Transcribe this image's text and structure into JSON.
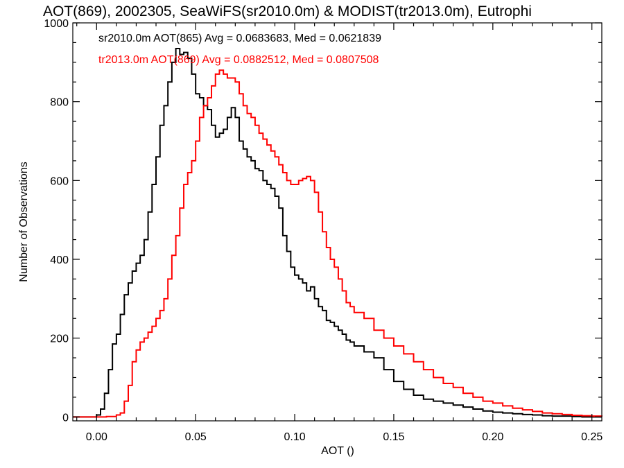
{
  "chart_data": {
    "type": "line",
    "title": "AOT(869), 2002305, SeaWiFS(sr2010.0m) & MODIST(tr2013.0m), Eutrophi",
    "xlabel": "AOT ()",
    "ylabel": "Number of Observations",
    "xlim": [
      -0.012,
      0.255
    ],
    "ylim": [
      -10,
      1000
    ],
    "xticks": [
      "0.00",
      "0.05",
      "0.10",
      "0.15",
      "0.20",
      "0.25"
    ],
    "xtick_values": [
      0.0,
      0.05,
      0.1,
      0.15,
      0.2,
      0.25
    ],
    "yticks": [
      "0",
      "200",
      "400",
      "600",
      "800",
      "1000"
    ],
    "ytick_values": [
      0,
      200,
      400,
      600,
      800,
      1000
    ],
    "step": "histogram",
    "legend_placement": "top-left",
    "series": [
      {
        "name": "sr2010.0m AOT(865)",
        "legend_text": "sr2010.0m AOT(865) Avg = 0.0683683, Med = 0.0621839",
        "color": "#000000",
        "x": [
          -0.012,
          -0.005,
          0.0,
          0.002,
          0.004,
          0.006,
          0.008,
          0.01,
          0.012,
          0.014,
          0.016,
          0.018,
          0.02,
          0.022,
          0.024,
          0.026,
          0.028,
          0.03,
          0.032,
          0.034,
          0.036,
          0.038,
          0.04,
          0.042,
          0.044,
          0.046,
          0.048,
          0.05,
          0.052,
          0.054,
          0.056,
          0.058,
          0.06,
          0.062,
          0.064,
          0.066,
          0.068,
          0.07,
          0.072,
          0.074,
          0.076,
          0.078,
          0.08,
          0.082,
          0.084,
          0.086,
          0.088,
          0.09,
          0.092,
          0.094,
          0.096,
          0.098,
          0.1,
          0.102,
          0.104,
          0.106,
          0.108,
          0.11,
          0.112,
          0.114,
          0.116,
          0.118,
          0.12,
          0.122,
          0.124,
          0.126,
          0.128,
          0.13,
          0.135,
          0.14,
          0.145,
          0.15,
          0.155,
          0.16,
          0.165,
          0.17,
          0.175,
          0.18,
          0.185,
          0.19,
          0.195,
          0.2,
          0.205,
          0.21,
          0.215,
          0.22,
          0.225,
          0.23,
          0.235,
          0.24,
          0.245,
          0.25,
          0.255
        ],
        "y": [
          0,
          0,
          5,
          20,
          60,
          120,
          185,
          210,
          260,
          310,
          340,
          370,
          390,
          410,
          450,
          520,
          590,
          660,
          740,
          790,
          850,
          900,
          935,
          920,
          925,
          910,
          870,
          820,
          810,
          790,
          780,
          740,
          710,
          720,
          730,
          760,
          785,
          760,
          700,
          680,
          660,
          650,
          630,
          625,
          600,
          590,
          580,
          560,
          530,
          460,
          420,
          380,
          360,
          350,
          340,
          320,
          330,
          300,
          280,
          270,
          245,
          240,
          230,
          220,
          210,
          195,
          190,
          180,
          165,
          150,
          120,
          90,
          70,
          55,
          45,
          40,
          35,
          30,
          25,
          20,
          15,
          12,
          10,
          8,
          6,
          5,
          3,
          2,
          2,
          1,
          0,
          0,
          0
        ]
      },
      {
        "name": "tr2013.0m AOT(869)",
        "legend_text": "tr2013.0m AOT(869) Avg = 0.0882512, Med = 0.0807508",
        "color": "#ff0000",
        "x": [
          -0.012,
          -0.005,
          0.0,
          0.005,
          0.01,
          0.012,
          0.014,
          0.016,
          0.018,
          0.02,
          0.022,
          0.024,
          0.026,
          0.028,
          0.03,
          0.032,
          0.034,
          0.036,
          0.038,
          0.04,
          0.042,
          0.044,
          0.046,
          0.048,
          0.05,
          0.052,
          0.054,
          0.056,
          0.058,
          0.06,
          0.062,
          0.064,
          0.066,
          0.068,
          0.07,
          0.072,
          0.074,
          0.076,
          0.078,
          0.08,
          0.082,
          0.084,
          0.086,
          0.088,
          0.09,
          0.092,
          0.094,
          0.096,
          0.098,
          0.1,
          0.102,
          0.104,
          0.106,
          0.108,
          0.11,
          0.112,
          0.114,
          0.116,
          0.118,
          0.12,
          0.122,
          0.124,
          0.126,
          0.128,
          0.13,
          0.135,
          0.14,
          0.145,
          0.15,
          0.155,
          0.16,
          0.165,
          0.17,
          0.175,
          0.18,
          0.185,
          0.19,
          0.195,
          0.2,
          0.205,
          0.21,
          0.215,
          0.22,
          0.225,
          0.23,
          0.235,
          0.24,
          0.245,
          0.25,
          0.255
        ],
        "y": [
          0,
          0,
          0,
          1,
          5,
          10,
          40,
          80,
          140,
          170,
          190,
          200,
          215,
          230,
          250,
          270,
          300,
          350,
          410,
          460,
          530,
          590,
          620,
          650,
          700,
          760,
          790,
          810,
          840,
          870,
          880,
          870,
          860,
          860,
          850,
          820,
          790,
          770,
          760,
          740,
          720,
          705,
          690,
          675,
          660,
          640,
          620,
          600,
          590,
          590,
          600,
          605,
          610,
          600,
          570,
          520,
          470,
          430,
          400,
          380,
          350,
          320,
          290,
          280,
          265,
          250,
          220,
          200,
          180,
          160,
          140,
          120,
          100,
          85,
          75,
          60,
          50,
          40,
          35,
          28,
          22,
          18,
          14,
          10,
          8,
          6,
          4,
          3,
          2,
          1
        ]
      }
    ]
  }
}
